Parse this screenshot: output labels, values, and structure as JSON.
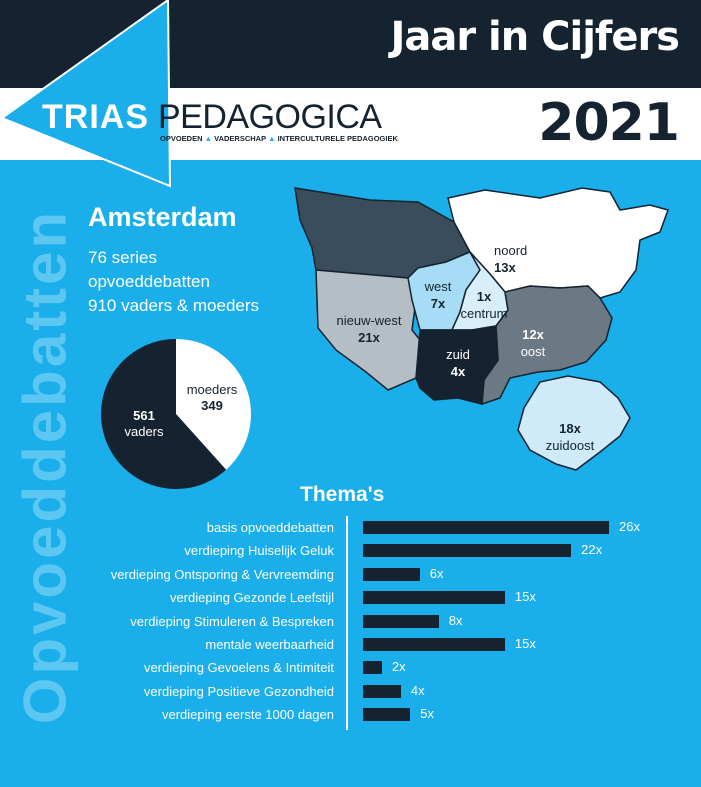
{
  "header": {
    "title": "Jaar in Cijfers",
    "year": "2021"
  },
  "logo": {
    "word1": "TRIAS",
    "word2": "PEDAGOGICA",
    "tagline": [
      "OPVOEDEN",
      "VADERSCHAP",
      "INTERCULTURELE PEDAGOGIEK"
    ]
  },
  "side_label": "Opvoeddebatten",
  "summary": {
    "city": "Amsterdam",
    "line1": "76 series",
    "line2": "opvoeddebatten",
    "line3": "910 vaders & moeders"
  },
  "pie": {
    "slices": [
      {
        "name": "vaders",
        "value": 561,
        "color": "#14232f"
      },
      {
        "name": "moeders",
        "value": 349,
        "color": "#ffffff"
      }
    ]
  },
  "districts": [
    {
      "name": "noord",
      "count": "13x",
      "color": "#ffffff"
    },
    {
      "name": "west",
      "count": "7x",
      "color": "#a6dcf6"
    },
    {
      "name": "centrum",
      "count": "1x",
      "color": "#d8effb"
    },
    {
      "name": "nieuw-west",
      "count": "21x",
      "color": "#b5bec4"
    },
    {
      "name": "zuid",
      "count": "4x",
      "color": "#14232f"
    },
    {
      "name": "oost",
      "count": "12x",
      "color": "#6b7985"
    },
    {
      "name": "zuidoost",
      "count": "18x",
      "color": "#cfeaf8"
    },
    {
      "name": "",
      "count": "",
      "color": "#3a4d5c"
    }
  ],
  "chart_data": {
    "type": "bar",
    "title": "Thema's",
    "categories": [
      "basis opvoeddebatten",
      "verdieping Huiselijk Geluk",
      "verdieping Ontsporing & Vervreemding",
      "verdieping Gezonde Leefstijl",
      "verdieping Stimuleren & Bespreken",
      "mentale weerbaarheid",
      "verdieping Gevoelens & Intimiteit",
      "verdieping Positieve Gezondheid",
      "verdieping eerste 1000 dagen"
    ],
    "values": [
      26,
      22,
      6,
      15,
      8,
      15,
      2,
      4,
      5
    ],
    "value_labels": [
      "26x",
      "22x",
      "6x",
      "15x",
      "8x",
      "15x",
      "2x",
      "4x",
      "5x"
    ],
    "orientation": "horizontal",
    "bar_color": "#14232f"
  }
}
